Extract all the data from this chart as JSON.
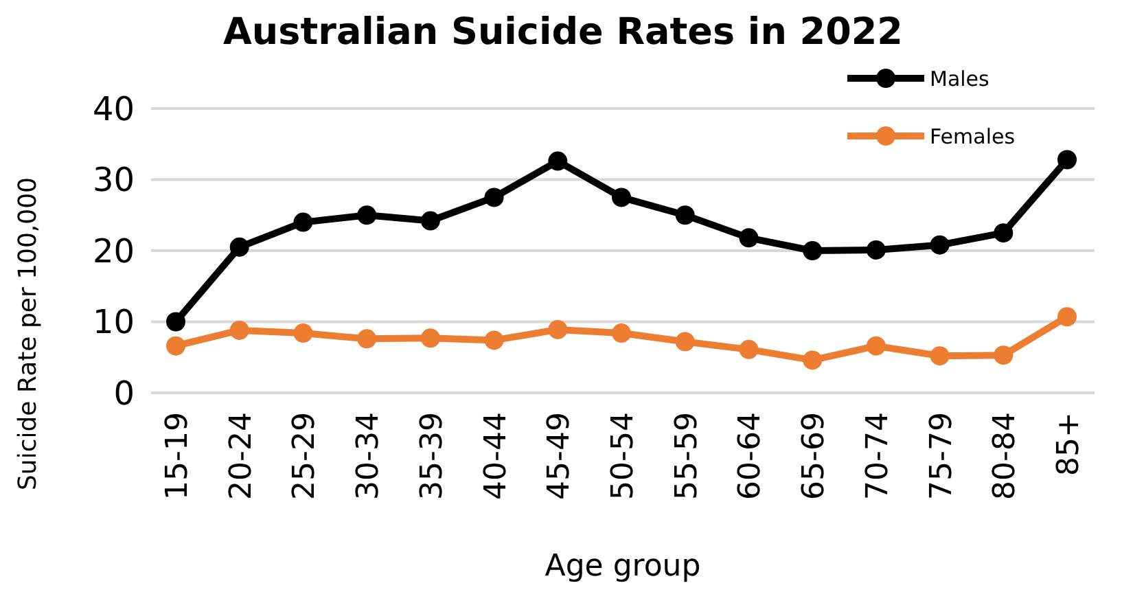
{
  "chart_data": {
    "type": "line",
    "title": "Australian Suicide Rates in 2022",
    "xlabel": "Age group",
    "ylabel": "Suicide Rate per 100,000",
    "categories": [
      "15-19",
      "20-24",
      "25-29",
      "30-34",
      "35-39",
      "40-44",
      "45-49",
      "50-54",
      "55-59",
      "60-64",
      "65-69",
      "70-74",
      "75-79",
      "80-84",
      "85+"
    ],
    "series": [
      {
        "name": "Males",
        "color": "#000000",
        "values": [
          10,
          20.5,
          24,
          25,
          24.2,
          27.5,
          32.6,
          27.5,
          25,
          21.8,
          20,
          20.1,
          20.8,
          22.5,
          32.8
        ]
      },
      {
        "name": "Females",
        "color": "#ed7d31",
        "values": [
          6.6,
          8.8,
          8.4,
          7.6,
          7.7,
          7.4,
          8.9,
          8.4,
          7.2,
          6.1,
          4.6,
          6.6,
          5.2,
          5.3,
          10.7
        ]
      }
    ],
    "ylim": [
      0,
      40
    ],
    "yticks": [
      0,
      10,
      20,
      30,
      40
    ],
    "grid": "y",
    "legend": "top right",
    "marker": "circle",
    "line_style": "solid"
  }
}
